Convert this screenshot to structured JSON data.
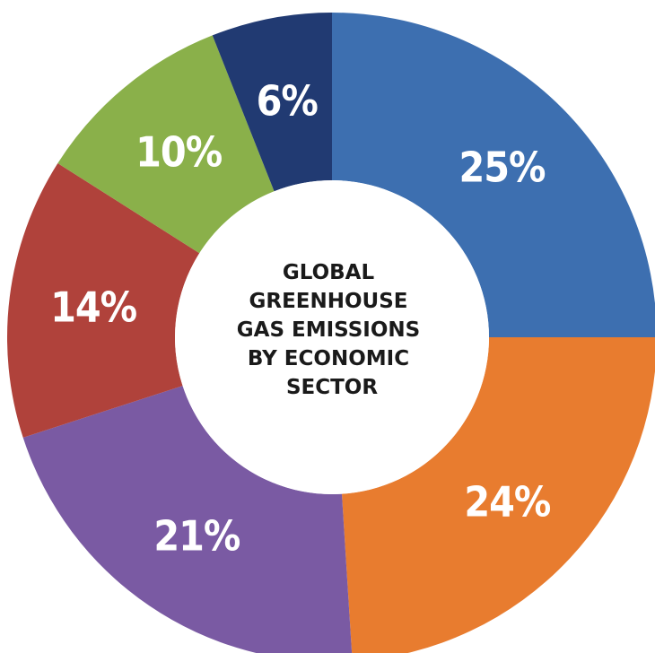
{
  "chart_data": {
    "type": "pie",
    "variant": "donut",
    "title_lines": [
      "GLOBAL",
      "GREENHOUSE",
      "GAS EMISSIONS",
      "BY ECONOMIC",
      "SECTOR"
    ],
    "slices": [
      {
        "value": 25,
        "label": "25%",
        "color": "#3d6fb0"
      },
      {
        "value": 24,
        "label": "24%",
        "color": "#e87c2f"
      },
      {
        "value": 21,
        "label": "21%",
        "color": "#7a5aa3"
      },
      {
        "value": 14,
        "label": "14%",
        "color": "#b0423b"
      },
      {
        "value": 10,
        "label": "10%",
        "color": "#8ab04a"
      },
      {
        "value": 6,
        "label": "6%",
        "color": "#213a72"
      }
    ],
    "start_direction": "top",
    "direction": "clockwise",
    "legend": "none",
    "center_background": "#ffffff"
  }
}
